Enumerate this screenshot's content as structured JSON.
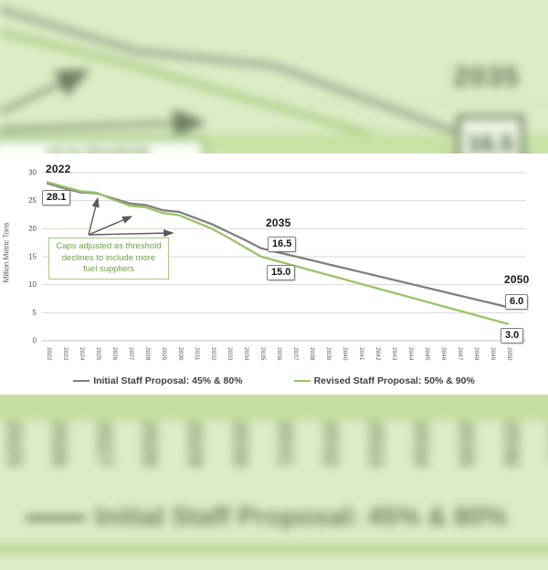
{
  "chart_data": {
    "type": "line",
    "title": "",
    "xlabel": "",
    "ylabel": "Million Metric Tons",
    "ylim": [
      0,
      30
    ],
    "yticks": [
      0,
      5,
      10,
      15,
      20,
      25,
      30
    ],
    "grid": true,
    "legend_position": "bottom",
    "categories": [
      "2022",
      "2023",
      "2024",
      "2025",
      "2026",
      "2027",
      "2028",
      "2029",
      "2030",
      "2031",
      "2032",
      "2033",
      "2034",
      "2035",
      "2036",
      "2037",
      "2038",
      "2039",
      "2040",
      "2041",
      "2042",
      "2043",
      "2044",
      "2045",
      "2046",
      "2047",
      "2048",
      "2049",
      "2050"
    ],
    "series": [
      {
        "name": "Initial Staff Proposal: 45% & 80%",
        "color": "#7f7f7f",
        "values": [
          28.1,
          27.2,
          26.5,
          26.3,
          25.4,
          24.5,
          24.2,
          23.3,
          23.0,
          21.9,
          20.8,
          19.4,
          18.0,
          16.5,
          15.8,
          15.1,
          14.4,
          13.7,
          13.0,
          12.3,
          11.6,
          10.9,
          10.2,
          9.5,
          8.8,
          8.1,
          7.4,
          6.7,
          6.0
        ]
      },
      {
        "name": "Revised Staff Proposal: 50% & 90%",
        "color": "#97c564",
        "values": [
          28.3,
          27.5,
          26.7,
          26.4,
          25.2,
          24.1,
          23.8,
          22.8,
          22.4,
          21.2,
          20.0,
          18.4,
          16.7,
          15.0,
          14.2,
          13.4,
          12.6,
          11.8,
          11.0,
          10.2,
          9.4,
          8.6,
          7.8,
          7.0,
          6.2,
          5.4,
          4.6,
          3.8,
          3.0
        ]
      }
    ]
  },
  "callouts": {
    "y2022": {
      "year": "2022",
      "value": "28.1"
    },
    "y2035": {
      "year": "2035",
      "initial": "16.5",
      "revised": "15.0"
    },
    "y2050": {
      "year": "2050",
      "initial": "6.0",
      "revised": "3.0"
    }
  },
  "note": {
    "text": "Caps adjusted as threshold declines to include more fuel suppliers"
  },
  "colors": {
    "initial_line": "#7f7f7f",
    "revised_line": "#97c564",
    "note_green": "#69a244",
    "note_border": "#a4cc82",
    "gridline": "#d9d9d9",
    "axis_text": "#595959",
    "background_tint": "#dcecc6"
  },
  "background": {
    "description": "blurred zoomed copy of the same chart",
    "year_callout": "2035",
    "value_label": "16.5",
    "note_fragment": "ed as threshold",
    "legend_fragment": "Initial Staff Proposal: 45% & 80%",
    "axis_years": [
      "2025",
      "2026",
      "2027",
      "2028",
      "2029",
      "2030",
      "2031",
      "2032",
      "2033",
      "2034",
      "2035",
      "2036",
      "2037"
    ]
  }
}
